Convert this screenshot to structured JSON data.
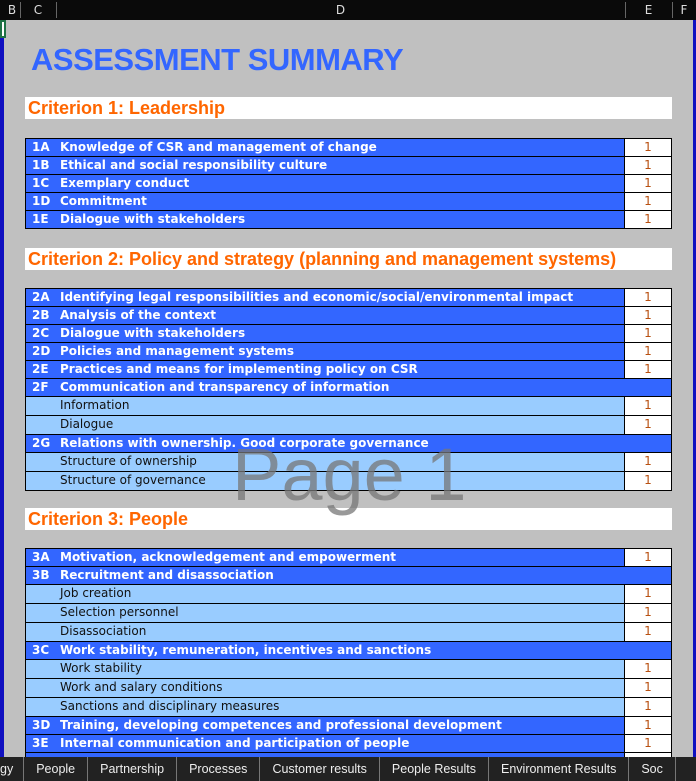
{
  "columns": [
    "B",
    "C",
    "D",
    "E",
    "F"
  ],
  "title": "ASSESSMENT SUMMARY",
  "watermark": "Page 1",
  "criteria": [
    {
      "title": "Criterion 1: Leadership",
      "rows": [
        {
          "type": "main",
          "code": "1A",
          "label": "Knowledge of CSR and management of change",
          "value": "1"
        },
        {
          "type": "main",
          "code": "1B",
          "label": "Ethical and social responsibility culture",
          "value": "1"
        },
        {
          "type": "main",
          "code": "1C",
          "label": "Exemplary conduct",
          "value": "1"
        },
        {
          "type": "main",
          "code": "1D",
          "label": "Commitment",
          "value": "1"
        },
        {
          "type": "main",
          "code": "1E",
          "label": "Dialogue with stakeholders",
          "value": "1"
        }
      ]
    },
    {
      "title": "Criterion 2: Policy and strategy (planning and management systems)",
      "rows": [
        {
          "type": "main",
          "code": "2A",
          "label": "Identifying legal responsibilities and economic/social/environmental impact",
          "value": "1"
        },
        {
          "type": "main",
          "code": "2B",
          "label": "Analysis of the context",
          "value": "1"
        },
        {
          "type": "main",
          "code": "2C",
          "label": "Dialogue with stakeholders",
          "value": "1"
        },
        {
          "type": "main",
          "code": "2D",
          "label": "Policies and management systems",
          "value": "1"
        },
        {
          "type": "main",
          "code": "2E",
          "label": "Practices and means for implementing policy on CSR",
          "value": "1"
        },
        {
          "type": "group",
          "code": "2F",
          "label": "Communication and transparency of information"
        },
        {
          "type": "sub",
          "label": "Information",
          "value": "1"
        },
        {
          "type": "sub",
          "label": "Dialogue",
          "value": "1"
        },
        {
          "type": "group",
          "code": "2G",
          "label": "Relations with ownership. Good corporate governance"
        },
        {
          "type": "sub",
          "label": "Structure of ownership",
          "value": "1"
        },
        {
          "type": "sub",
          "label": "Structure of governance",
          "value": "1"
        }
      ]
    },
    {
      "title": "Criterion 3: People",
      "rows": [
        {
          "type": "main",
          "code": "3A",
          "label": "Motivation, acknowledgement and empowerment",
          "value": "1"
        },
        {
          "type": "group",
          "code": "3B",
          "label": "Recruitment and disassociation"
        },
        {
          "type": "sub",
          "label": "Job creation",
          "value": "1"
        },
        {
          "type": "sub",
          "label": "Selection personnel",
          "value": "1"
        },
        {
          "type": "sub",
          "label": "Disassociation",
          "value": "1"
        },
        {
          "type": "group",
          "code": "3C",
          "label": "Work stability, remuneration, incentives and sanctions"
        },
        {
          "type": "sub",
          "label": "Work stability",
          "value": "1"
        },
        {
          "type": "sub",
          "label": "Work and salary conditions",
          "value": "1"
        },
        {
          "type": "sub",
          "label": "Sanctions and disciplinary measures",
          "value": "1"
        },
        {
          "type": "main",
          "code": "3D",
          "label": "Training, developing competences and professional development",
          "value": "1"
        },
        {
          "type": "main",
          "code": "3E",
          "label": "Internal communication and participation of people",
          "value": "1"
        },
        {
          "type": "main",
          "code": "",
          "label": "",
          "value": ""
        }
      ]
    }
  ],
  "sheet_tabs": [
    "gy",
    "People",
    "Partnership",
    "Processes",
    "Customer results",
    "People Results",
    "Environment Results",
    "Soc"
  ]
}
